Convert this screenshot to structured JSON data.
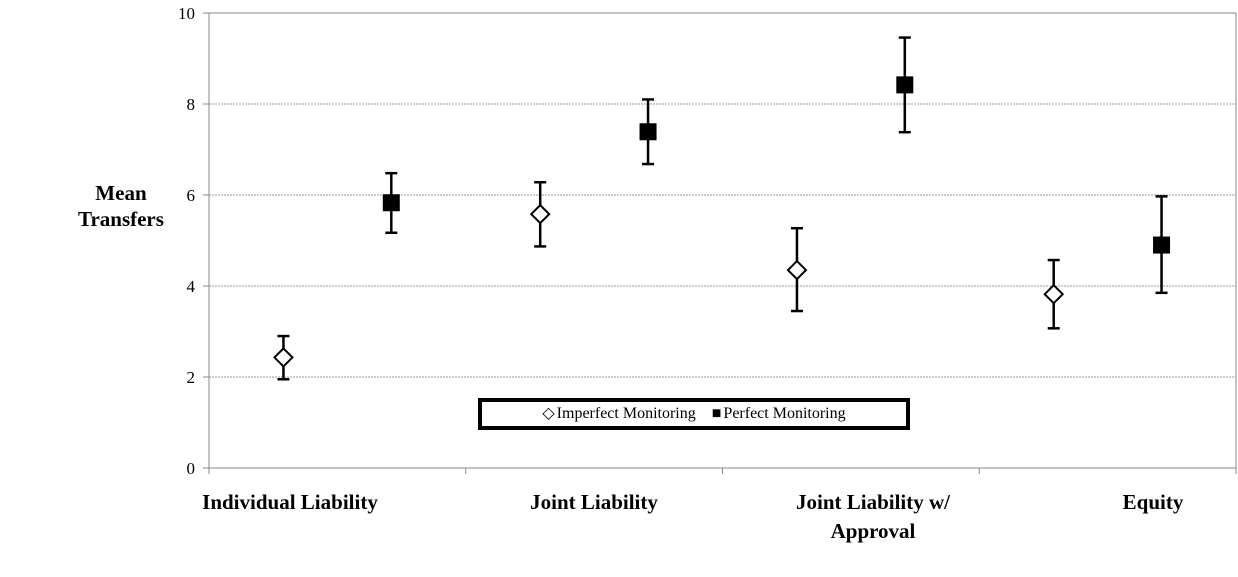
{
  "chart_data": {
    "type": "scatter",
    "ylabel": "Mean\nTransfers",
    "ylim": [
      0,
      10
    ],
    "yticks": [
      0,
      2,
      4,
      6,
      8,
      10
    ],
    "grid": true,
    "legend_placement": "bottom-center",
    "categories": [
      "Individual Liability",
      "Joint Liability",
      "Joint Liability w/ Approval",
      "Equity"
    ],
    "series": [
      {
        "name": "Imperfect Monitoring",
        "marker": "open-diamond",
        "color": "#000000",
        "values": [
          2.43,
          5.58,
          4.35,
          3.82
        ],
        "error_low": [
          1.95,
          4.87,
          3.45,
          3.07
        ],
        "error_high": [
          2.9,
          6.28,
          5.27,
          4.57
        ]
      },
      {
        "name": "Perfect Monitoring",
        "marker": "filled-square",
        "color": "#000000",
        "values": [
          5.83,
          7.39,
          8.42,
          4.9
        ],
        "error_low": [
          5.17,
          6.68,
          7.38,
          3.85
        ],
        "error_high": [
          6.48,
          8.1,
          9.46,
          5.97
        ]
      }
    ]
  },
  "legend": {
    "imperfect_symbol": "◇",
    "imperfect_label": "Imperfect Monitoring",
    "perfect_symbol": "■",
    "perfect_label": "Perfect Monitoring"
  }
}
